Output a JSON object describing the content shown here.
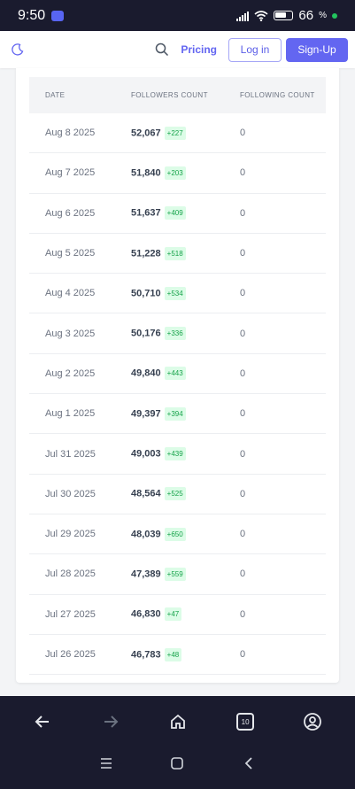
{
  "status": {
    "time": "9:50",
    "battery": "66"
  },
  "nav": {
    "pricing": "Pricing",
    "login": "Log in",
    "signup": "Sign-Up"
  },
  "table": {
    "headers": [
      "DATE",
      "FOLLOWERS COUNT",
      "FOLLOWING COUNT"
    ],
    "rows": [
      {
        "date": "Aug 8 2025",
        "followers": "52,067",
        "delta": "+227",
        "following": "0"
      },
      {
        "date": "Aug 7 2025",
        "followers": "51,840",
        "delta": "+203",
        "following": "0"
      },
      {
        "date": "Aug 6 2025",
        "followers": "51,637",
        "delta": "+409",
        "following": "0"
      },
      {
        "date": "Aug 5 2025",
        "followers": "51,228",
        "delta": "+518",
        "following": "0"
      },
      {
        "date": "Aug 4 2025",
        "followers": "50,710",
        "delta": "+534",
        "following": "0"
      },
      {
        "date": "Aug 3 2025",
        "followers": "50,176",
        "delta": "+336",
        "following": "0"
      },
      {
        "date": "Aug 2 2025",
        "followers": "49,840",
        "delta": "+443",
        "following": "0"
      },
      {
        "date": "Aug 1 2025",
        "followers": "49,397",
        "delta": "+394",
        "following": "0"
      },
      {
        "date": "Jul 31 2025",
        "followers": "49,003",
        "delta": "+439",
        "following": "0"
      },
      {
        "date": "Jul 30 2025",
        "followers": "48,564",
        "delta": "+525",
        "following": "0"
      },
      {
        "date": "Jul 29 2025",
        "followers": "48,039",
        "delta": "+650",
        "following": "0"
      },
      {
        "date": "Jul 28 2025",
        "followers": "47,389",
        "delta": "+559",
        "following": "0"
      },
      {
        "date": "Jul 27 2025",
        "followers": "46,830",
        "delta": "+47",
        "following": "0"
      },
      {
        "date": "Jul 26 2025",
        "followers": "46,783",
        "delta": "+48",
        "following": "0"
      }
    ]
  },
  "browser": {
    "tab_count": "10"
  },
  "colors": {
    "accent": "#6366f1",
    "positive": "#16a34a",
    "positive_bg": "#dcfce7",
    "dark_bar": "#1a1b2e"
  }
}
